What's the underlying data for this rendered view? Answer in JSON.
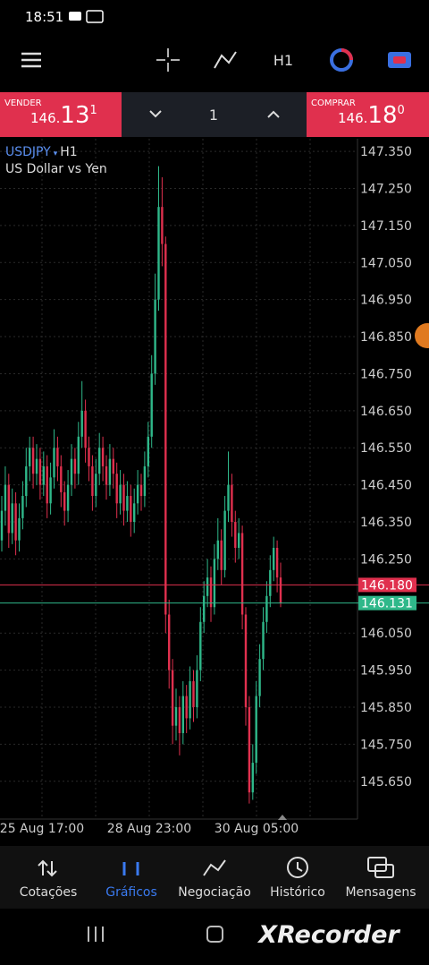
{
  "status_bar": {
    "time": "18:51"
  },
  "toolbar": {
    "timeframe": "H1"
  },
  "trade_bar": {
    "sell_label": "VENDER",
    "sell_price": {
      "prefix": "146.",
      "big": "13",
      "sup": "1"
    },
    "quantity": "1",
    "buy_label": "COMPRAR",
    "buy_price": {
      "prefix": "146.",
      "big": "18",
      "sup": "0"
    }
  },
  "chart": {
    "type": "candlestick",
    "symbol": "USDJPY",
    "timeframe": "H1",
    "description": "US Dollar vs Yen",
    "x_labels": [
      "25 Aug 17:00",
      "28 Aug 23:00",
      "30 Aug 05:00"
    ],
    "ylim": [
      145.548,
      147.384
    ],
    "yticks": [
      {
        "value": 147.35,
        "label": "147.350"
      },
      {
        "value": 147.25,
        "label": "147.250"
      },
      {
        "value": 147.15,
        "label": "147.150"
      },
      {
        "value": 147.05,
        "label": "147.050"
      },
      {
        "value": 146.95,
        "label": "146.950"
      },
      {
        "value": 146.85,
        "label": "146.850"
      },
      {
        "value": 146.75,
        "label": "146.750"
      },
      {
        "value": 146.65,
        "label": "146.650"
      },
      {
        "value": 146.55,
        "label": "146.550"
      },
      {
        "value": 146.45,
        "label": "146.450"
      },
      {
        "value": 146.35,
        "label": "146.350"
      },
      {
        "value": 146.25,
        "label": "146.250"
      },
      {
        "value": 146.05,
        "label": "146.050"
      },
      {
        "value": 145.95,
        "label": "145.950"
      },
      {
        "value": 145.85,
        "label": "145.850"
      },
      {
        "value": 145.75,
        "label": "145.750"
      },
      {
        "value": 145.65,
        "label": "145.650"
      }
    ],
    "ask": {
      "value": 146.18,
      "label": "146.180",
      "color": "#e0304e"
    },
    "bid": {
      "value": 146.131,
      "label": "146.131",
      "color": "#2fb88a"
    },
    "up_color": "#2fb88a",
    "down_color": "#e0304e",
    "open": [
      146.3,
      146.38,
      146.45,
      146.32,
      146.4,
      146.3,
      146.36,
      146.42,
      146.5,
      146.55,
      146.48,
      146.52,
      146.45,
      146.5,
      146.4,
      146.47,
      146.55,
      146.5,
      146.43,
      146.38,
      146.45,
      146.52,
      146.48,
      146.58,
      146.65,
      146.55,
      146.5,
      146.42,
      146.48,
      146.55,
      146.5,
      146.45,
      146.52,
      146.48,
      146.4,
      146.45,
      146.38,
      146.42,
      146.35,
      146.4,
      146.45,
      146.42,
      146.5,
      146.58,
      146.75,
      146.95,
      147.2,
      147.1,
      146.1,
      145.95,
      145.8,
      145.85,
      145.78,
      145.88,
      145.82,
      145.92,
      145.85,
      145.95,
      146.08,
      146.15,
      146.2,
      146.12,
      146.25,
      146.3,
      146.22,
      146.38,
      146.45,
      146.35,
      146.28,
      146.32,
      146.1,
      145.85,
      145.62,
      145.7,
      145.88,
      145.98,
      146.08,
      146.15,
      146.22,
      146.28,
      146.2
    ],
    "high": [
      146.42,
      146.5,
      146.48,
      146.44,
      146.43,
      146.4,
      146.46,
      146.55,
      146.58,
      146.58,
      146.56,
      146.55,
      146.54,
      146.53,
      146.51,
      146.6,
      146.58,
      146.53,
      146.46,
      146.49,
      146.56,
      146.55,
      146.62,
      146.73,
      146.68,
      146.58,
      146.53,
      146.52,
      146.59,
      146.58,
      146.53,
      146.56,
      146.55,
      146.51,
      146.49,
      146.48,
      146.46,
      146.45,
      146.44,
      146.49,
      146.48,
      146.54,
      146.62,
      146.8,
      147.02,
      147.31,
      147.28,
      147.12,
      146.14,
      145.98,
      145.9,
      145.88,
      145.92,
      145.91,
      145.96,
      145.95,
      145.99,
      146.12,
      146.19,
      146.25,
      146.23,
      146.29,
      146.36,
      146.33,
      146.42,
      146.54,
      146.48,
      146.38,
      146.36,
      146.34,
      146.12,
      145.88,
      145.75,
      145.92,
      146.02,
      146.12,
      146.19,
      146.26,
      146.31,
      146.3,
      146.24
    ],
    "low": [
      146.27,
      146.34,
      146.28,
      146.29,
      146.26,
      146.27,
      146.33,
      146.39,
      146.46,
      146.44,
      146.45,
      146.41,
      146.42,
      146.36,
      146.37,
      146.44,
      146.46,
      146.39,
      146.34,
      146.35,
      146.42,
      146.44,
      146.45,
      146.55,
      146.51,
      146.46,
      146.38,
      146.39,
      146.45,
      146.46,
      146.41,
      146.42,
      146.44,
      146.36,
      146.37,
      146.34,
      146.35,
      146.31,
      146.32,
      146.37,
      146.38,
      146.39,
      146.47,
      146.55,
      146.72,
      146.92,
      147.04,
      146.05,
      145.9,
      145.75,
      145.76,
      145.72,
      145.75,
      145.78,
      145.79,
      145.81,
      145.82,
      145.92,
      146.05,
      146.12,
      146.08,
      146.1,
      146.22,
      146.18,
      146.2,
      146.35,
      146.31,
      146.24,
      146.25,
      146.06,
      145.8,
      145.59,
      145.6,
      145.67,
      145.85,
      145.95,
      146.05,
      146.12,
      146.19,
      146.16,
      146.12
    ],
    "close": [
      146.38,
      146.45,
      146.32,
      146.4,
      146.3,
      146.36,
      146.42,
      146.5,
      146.55,
      146.48,
      146.52,
      146.45,
      146.5,
      146.4,
      146.47,
      146.55,
      146.5,
      146.43,
      146.38,
      146.45,
      146.52,
      146.48,
      146.58,
      146.65,
      146.55,
      146.5,
      146.42,
      146.48,
      146.55,
      146.5,
      146.45,
      146.52,
      146.48,
      146.4,
      146.45,
      146.38,
      146.42,
      146.35,
      146.4,
      146.45,
      146.42,
      146.5,
      146.58,
      146.75,
      146.95,
      147.2,
      147.1,
      146.1,
      145.95,
      145.8,
      145.85,
      145.78,
      145.88,
      145.82,
      145.92,
      145.85,
      145.95,
      146.08,
      146.15,
      146.2,
      146.12,
      146.25,
      146.3,
      146.22,
      146.38,
      146.45,
      146.35,
      146.28,
      146.32,
      146.1,
      145.85,
      145.62,
      145.7,
      145.88,
      145.98,
      146.08,
      146.15,
      146.22,
      146.28,
      146.2,
      146.131
    ]
  },
  "nav": {
    "items": [
      "Cotações",
      "Gráficos",
      "Negociação",
      "Histórico",
      "Mensagens"
    ]
  },
  "watermark": "XRecorder"
}
